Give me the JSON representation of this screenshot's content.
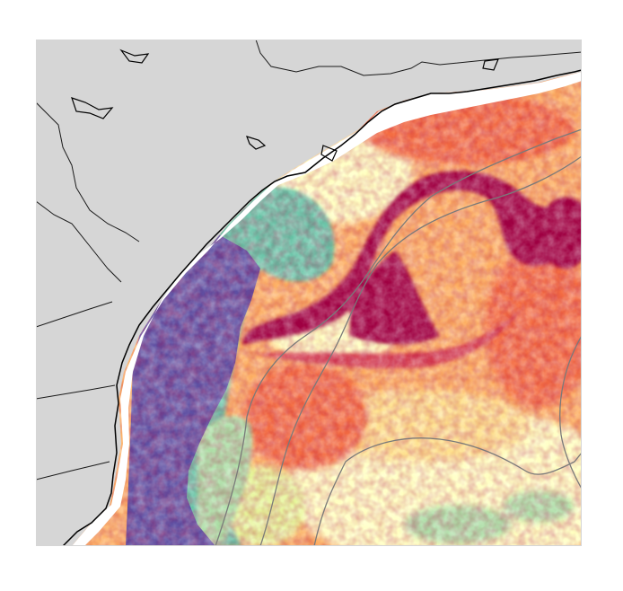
{
  "map": {
    "land_color": "#d6d6d6",
    "coastline_color": "#000000",
    "border_color": "#1a1a1a",
    "contour_color": "#7a7a7a",
    "no_data_color": "#ffffff",
    "colormap": {
      "name": "spectral",
      "colors": [
        "#5e4fa2",
        "#3288bd",
        "#66c2a5",
        "#abdda4",
        "#e6f598",
        "#ffffbf",
        "#fee08b",
        "#fdae61",
        "#f46d43",
        "#d53e4f",
        "#9e0142"
      ]
    }
  }
}
